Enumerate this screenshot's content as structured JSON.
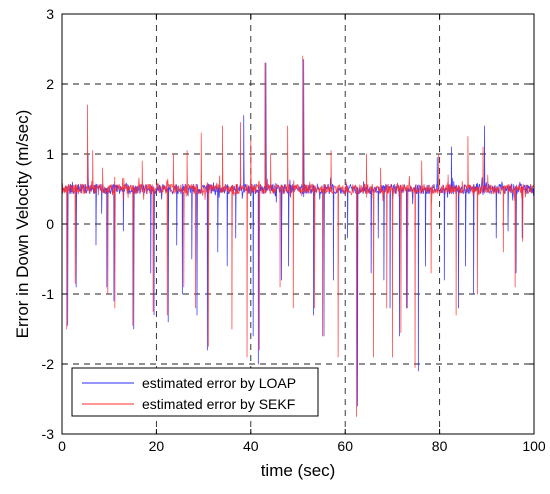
{
  "chart_data": {
    "type": "line",
    "title": "",
    "xlabel": "time (sec)",
    "ylabel": "Error in Down Velocity  (m/sec)",
    "xlim": [
      0,
      100
    ],
    "ylim": [
      -3,
      3
    ],
    "xticks": [
      0,
      20,
      40,
      60,
      80,
      100
    ],
    "yticks": [
      -3,
      -2,
      -1,
      0,
      1,
      2,
      3
    ],
    "grid": true,
    "legend_position": "bottom-left",
    "baseline": 0.5,
    "series": [
      {
        "name": "estimated error by  LOAP",
        "color": "#2b2bff",
        "spikes": [
          [
            1.2,
            -1.45
          ],
          [
            3.0,
            -0.9
          ],
          [
            5.5,
            1.0
          ],
          [
            7.2,
            -0.3
          ],
          [
            8.4,
            0.15
          ],
          [
            9.5,
            -0.9
          ],
          [
            11.0,
            -1.1
          ],
          [
            13.0,
            -0.1
          ],
          [
            15.2,
            -1.5
          ],
          [
            18.8,
            -0.7
          ],
          [
            19.5,
            -1.3
          ],
          [
            22.5,
            -1.4
          ],
          [
            24.3,
            -0.3
          ],
          [
            25.5,
            -1.0
          ],
          [
            27.5,
            -0.5
          ],
          [
            28.6,
            -1.3
          ],
          [
            30.8,
            -1.8
          ],
          [
            33.0,
            -0.4
          ],
          [
            35.0,
            -0.6
          ],
          [
            36.8,
            -0.2
          ],
          [
            38.5,
            1.55
          ],
          [
            40.5,
            -1.6
          ],
          [
            41.6,
            -2.0
          ],
          [
            43.2,
            2.3
          ],
          [
            46.5,
            -0.8
          ],
          [
            48.0,
            -0.6
          ],
          [
            51.2,
            2.35
          ],
          [
            53.3,
            -1.3
          ],
          [
            55.5,
            -1.6
          ],
          [
            57.5,
            -0.8
          ],
          [
            60.5,
            -0.2
          ],
          [
            62.6,
            -2.6
          ],
          [
            65.5,
            -0.7
          ],
          [
            67.0,
            -0.2
          ],
          [
            68.2,
            -0.8
          ],
          [
            69.5,
            -1.2
          ],
          [
            71.5,
            -1.6
          ],
          [
            73.0,
            -1.2
          ],
          [
            75.5,
            -2.1
          ],
          [
            77.0,
            -0.6
          ],
          [
            79.5,
            0.95
          ],
          [
            81.0,
            -0.8
          ],
          [
            82.5,
            1.1
          ],
          [
            84.0,
            -1.2
          ],
          [
            85.5,
            -0.6
          ],
          [
            87.2,
            -1.0
          ],
          [
            89.5,
            1.4
          ],
          [
            92.0,
            -0.2
          ],
          [
            94.5,
            -0.1
          ],
          [
            96.2,
            -0.7
          ],
          [
            97.5,
            -0.2
          ]
        ]
      },
      {
        "name": "estimated error by   SEKF",
        "color": "#ff2b2b",
        "spikes": [
          [
            1.0,
            -1.5
          ],
          [
            2.8,
            -0.85
          ],
          [
            5.4,
            1.7
          ],
          [
            6.5,
            1.05
          ],
          [
            8.6,
            0.8
          ],
          [
            9.7,
            -1.0
          ],
          [
            11.2,
            -1.2
          ],
          [
            12.8,
            0.65
          ],
          [
            15.0,
            -1.45
          ],
          [
            17.0,
            0.9
          ],
          [
            19.3,
            -1.25
          ],
          [
            22.3,
            -1.3
          ],
          [
            23.6,
            1.0
          ],
          [
            25.8,
            -0.9
          ],
          [
            26.5,
            1.05
          ],
          [
            28.3,
            -1.2
          ],
          [
            29.5,
            1.3
          ],
          [
            31.0,
            -1.75
          ],
          [
            34.0,
            1.4
          ],
          [
            36.0,
            -1.5
          ],
          [
            37.8,
            1.45
          ],
          [
            39.2,
            -1.9
          ],
          [
            40.0,
            1.2
          ],
          [
            41.8,
            -1.8
          ],
          [
            43.0,
            2.3
          ],
          [
            44.2,
            1.0
          ],
          [
            46.2,
            -0.9
          ],
          [
            47.8,
            1.4
          ],
          [
            49.0,
            -1.2
          ],
          [
            51.0,
            2.4
          ],
          [
            52.5,
            0.6
          ],
          [
            53.5,
            -1.2
          ],
          [
            55.2,
            -1.6
          ],
          [
            57.0,
            1.05
          ],
          [
            58.5,
            -1.9
          ],
          [
            60.2,
            0.6
          ],
          [
            62.4,
            -2.75
          ],
          [
            64.5,
            1.0
          ],
          [
            66.0,
            -1.9
          ],
          [
            67.5,
            0.8
          ],
          [
            68.8,
            -1.2
          ],
          [
            70.0,
            -1.9
          ],
          [
            71.8,
            -1.55
          ],
          [
            73.2,
            -1.2
          ],
          [
            74.8,
            -2.05
          ],
          [
            76.2,
            0.9
          ],
          [
            78.2,
            -0.7
          ],
          [
            79.8,
            1.0
          ],
          [
            81.8,
            0.7
          ],
          [
            83.5,
            -1.3
          ],
          [
            86.0,
            1.25
          ],
          [
            88.0,
            -1.0
          ],
          [
            89.2,
            1.1
          ],
          [
            90.2,
            0.7
          ],
          [
            93.5,
            -0.4
          ],
          [
            96.0,
            -0.9
          ],
          [
            97.6,
            -0.25
          ]
        ]
      }
    ]
  }
}
